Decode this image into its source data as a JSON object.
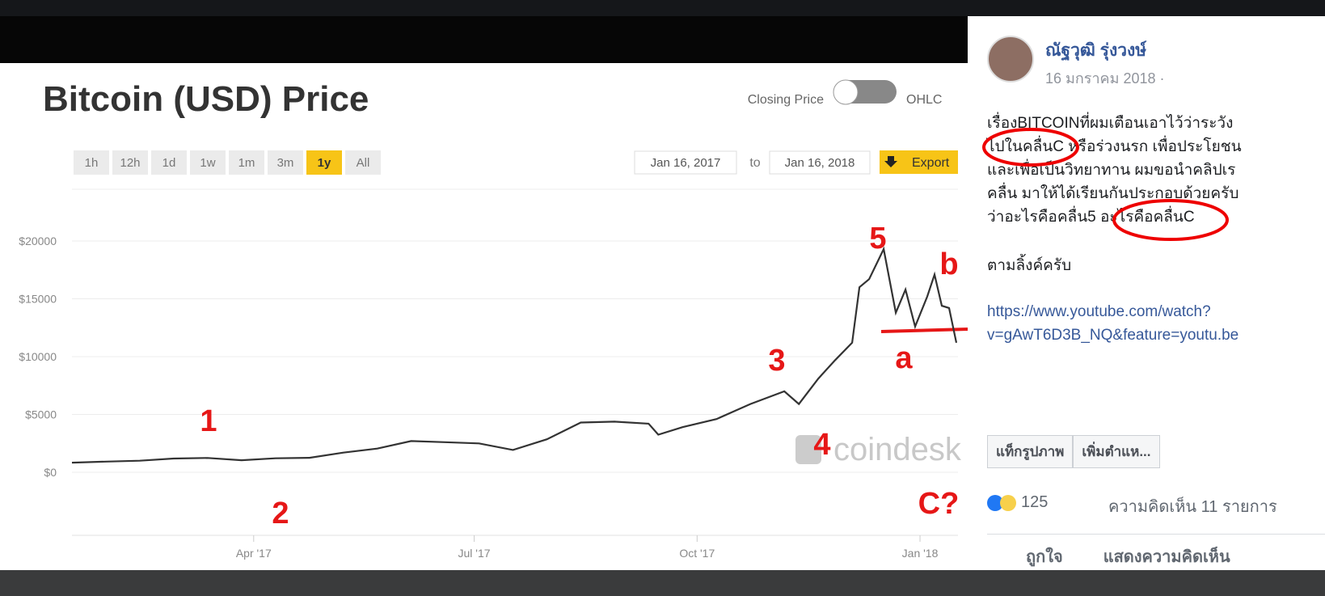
{
  "chart_data": {
    "type": "line",
    "title": "Bitcoin (USD) Price",
    "x": [
      "2017-01-16",
      "2017-01-30",
      "2017-02-13",
      "2017-02-27",
      "2017-03-13",
      "2017-03-27",
      "2017-04-10",
      "2017-04-24",
      "2017-05-08",
      "2017-05-22",
      "2017-06-05",
      "2017-06-19",
      "2017-07-03",
      "2017-07-17",
      "2017-07-31",
      "2017-08-14",
      "2017-08-28",
      "2017-09-11",
      "2017-09-15",
      "2017-09-25",
      "2017-10-09",
      "2017-10-23",
      "2017-11-06",
      "2017-11-12",
      "2017-11-20",
      "2017-11-27",
      "2017-12-04",
      "2017-12-07",
      "2017-12-11",
      "2017-12-17",
      "2017-12-22",
      "2017-12-26",
      "2017-12-30",
      "2018-01-04",
      "2018-01-07",
      "2018-01-10",
      "2018-01-13",
      "2018-01-16"
    ],
    "values": [
      830,
      920,
      1000,
      1190,
      1240,
      1040,
      1210,
      1250,
      1700,
      2050,
      2700,
      2600,
      2500,
      1930,
      2850,
      4300,
      4380,
      4200,
      3250,
      3900,
      4600,
      5900,
      7000,
      5900,
      8100,
      9700,
      11200,
      16000,
      16700,
      19300,
      13800,
      15800,
      12600,
      15200,
      17100,
      14400,
      14200,
      11200
    ],
    "color": "#333333",
    "xlim": [
      "2017-01-16",
      "2018-01-16"
    ],
    "xticks": [
      {
        "value": "2017-04-01",
        "label": "Apr '17"
      },
      {
        "value": "2017-07-01",
        "label": "Jul '17"
      },
      {
        "value": "2017-10-01",
        "label": "Oct '17"
      },
      {
        "value": "2018-01-01",
        "label": "Jan '18"
      }
    ],
    "ylim": [
      -5000,
      25000
    ],
    "yticks": [
      {
        "value": 0,
        "label": "$0"
      },
      {
        "value": 5000,
        "label": "$5000"
      },
      {
        "value": 10000,
        "label": "$10000"
      },
      {
        "value": 15000,
        "label": "$15000"
      },
      {
        "value": 20000,
        "label": "$20000"
      }
    ],
    "grid": true,
    "watermark": "coindesk",
    "annotations": [
      "1",
      "2",
      "3",
      "4",
      "5",
      "a",
      "b",
      "C?"
    ],
    "toggle": {
      "left": "Closing Price",
      "right": "OHLC"
    },
    "range_buttons": [
      "1h",
      "12h",
      "1d",
      "1w",
      "1m",
      "3m",
      "1y",
      "All"
    ],
    "active_button": 6,
    "date_from": "Jan 16, 2017",
    "date_sep": "to",
    "date_to": "Jan 16, 2018",
    "export": "Export"
  },
  "post": {
    "author": "ณัฐวุฒิ รุ่งวงษ์",
    "date": "16 มกราคม 2018 ·",
    "text_lines": [
      "เรื่องBITCOINที่ผมเตือนเอาไว้ว่าระวัง",
      "ไปในคลื่นC หรือร่วงนรก เพื่อประโยชน",
      "และเพื่อเป็นวิทยาทาน ผมขอนำคลิปเร",
      "คลื่น มาให้ได้เรียนกันประกอบด้วยครับ",
      "ว่าอะไรคือคลื่น5 อะไรคือคลื่นC"
    ],
    "follow": "ตามลิ้งค์ครับ",
    "link_lines": [
      "https://www.youtube.com/watch?",
      "v=gAwT6D3B_NQ&feature=youtu.be"
    ],
    "tag_buttons": [
      "แท็กรูปภาพ",
      "เพิ่มตำแห..."
    ],
    "reaction_count": 125,
    "comments": "ความคิดเห็น 11 รายการ",
    "actions": [
      "ถูกใจ",
      "แสดงความคิดเห็น"
    ]
  }
}
